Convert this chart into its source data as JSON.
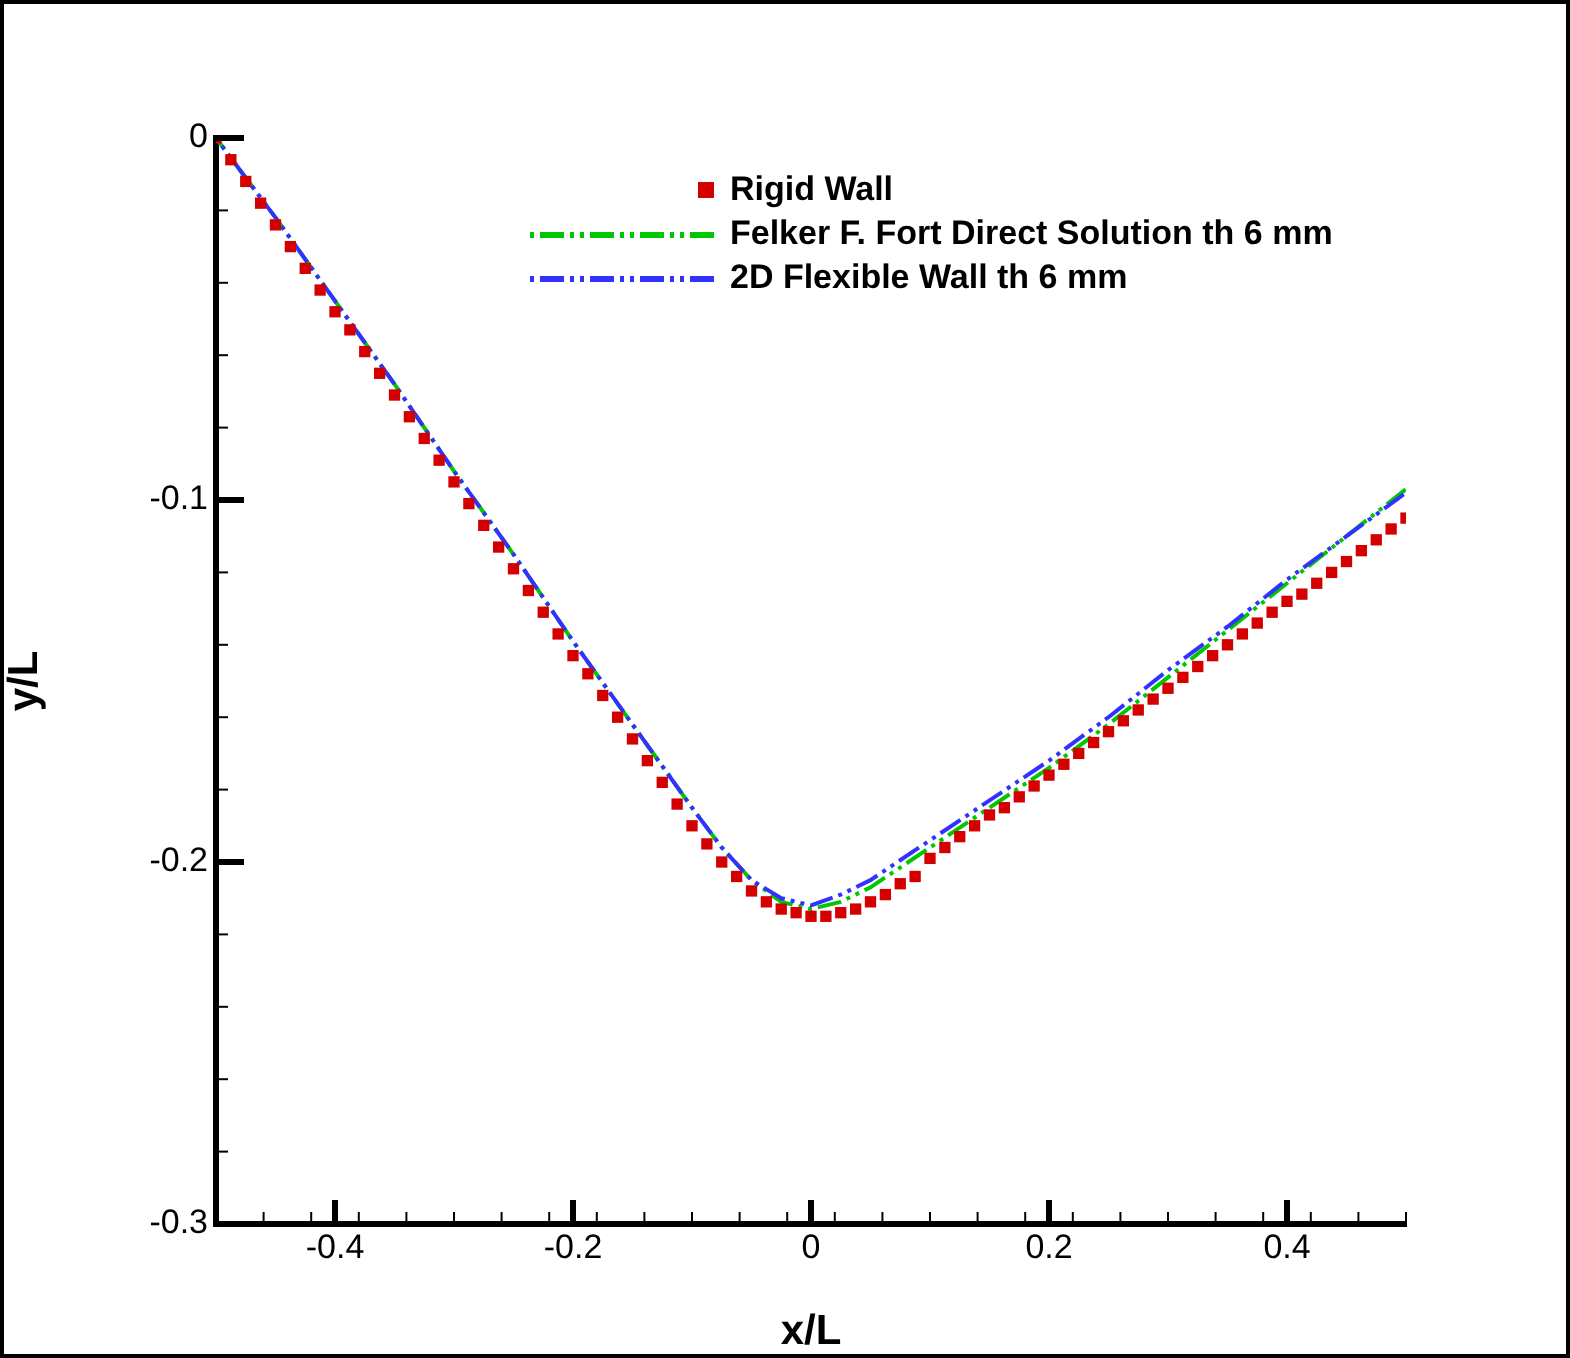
{
  "chart_data": {
    "type": "line",
    "xlabel": "x/L",
    "ylabel": "y/L",
    "xlim": [
      -0.5,
      0.5
    ],
    "ylim": [
      -0.3,
      0
    ],
    "xticks": [
      {
        "value": -0.5,
        "label": null
      },
      {
        "value": -0.46,
        "label": null
      },
      {
        "value": -0.42,
        "label": null
      },
      -0.4,
      {
        "value": -0.38,
        "label": null
      },
      {
        "value": -0.34,
        "label": null
      },
      {
        "value": -0.3,
        "label": null
      },
      {
        "value": -0.26,
        "label": null
      },
      {
        "value": -0.22,
        "label": null
      },
      -0.2,
      {
        "value": -0.18,
        "label": null
      },
      {
        "value": -0.14,
        "label": null
      },
      {
        "value": -0.1,
        "label": null
      },
      {
        "value": -0.06,
        "label": null
      },
      {
        "value": -0.02,
        "label": null
      },
      0,
      {
        "value": 0.02,
        "label": null
      },
      {
        "value": 0.06,
        "label": null
      },
      {
        "value": 0.1,
        "label": null
      },
      {
        "value": 0.14,
        "label": null
      },
      {
        "value": 0.18,
        "label": null
      },
      0.2,
      {
        "value": 0.22,
        "label": null
      },
      {
        "value": 0.26,
        "label": null
      },
      {
        "value": 0.3,
        "label": null
      },
      {
        "value": 0.34,
        "label": null
      },
      {
        "value": 0.38,
        "label": null
      },
      0.4,
      {
        "value": 0.42,
        "label": null
      },
      {
        "value": 0.46,
        "label": null
      },
      {
        "value": 0.5,
        "label": null
      }
    ],
    "yticks": [
      -0.3,
      {
        "value": -0.28,
        "label": null
      },
      {
        "value": -0.26,
        "label": null
      },
      {
        "value": -0.24,
        "label": null
      },
      {
        "value": -0.22,
        "label": null
      },
      -0.2,
      {
        "value": -0.18,
        "label": null
      },
      {
        "value": -0.16,
        "label": null
      },
      {
        "value": -0.14,
        "label": null
      },
      {
        "value": -0.12,
        "label": null
      },
      -0.1,
      {
        "value": -0.08,
        "label": null
      },
      {
        "value": -0.06,
        "label": null
      },
      {
        "value": -0.04,
        "label": null
      },
      {
        "value": -0.02,
        "label": null
      },
      0
    ],
    "grid": false,
    "legend": "top right",
    "series": [
      {
        "name": "Rigid Wall",
        "type": "scatter",
        "marker": "square",
        "color": "#d40000",
        "x": [
          -0.5,
          -0.4875,
          -0.475,
          -0.4625,
          -0.45,
          -0.4375,
          -0.425,
          -0.4125,
          -0.4,
          -0.3875,
          -0.375,
          -0.3625,
          -0.35,
          -0.3375,
          -0.325,
          -0.3125,
          -0.3,
          -0.2875,
          -0.275,
          -0.2625,
          -0.25,
          -0.2375,
          -0.225,
          -0.2125,
          -0.2,
          -0.1875,
          -0.175,
          -0.1625,
          -0.15,
          -0.1375,
          -0.125,
          -0.1125,
          -0.1,
          -0.0875,
          -0.075,
          -0.0625,
          -0.05,
          -0.0375,
          -0.025,
          -0.0125,
          0,
          0.0125,
          0.025,
          0.0375,
          0.05,
          0.0625,
          0.075,
          0.0875,
          0.1,
          0.1125,
          0.125,
          0.1375,
          0.15,
          0.1625,
          0.175,
          0.1875,
          0.2,
          0.2125,
          0.225,
          0.2375,
          0.25,
          0.2625,
          0.275,
          0.2875,
          0.3,
          0.3125,
          0.325,
          0.3375,
          0.35,
          0.3625,
          0.375,
          0.3875,
          0.4,
          0.4125,
          0.425,
          0.4375,
          0.45,
          0.4625,
          0.475,
          0.4875,
          0.5
        ],
        "values": [
          0,
          -0.006,
          -0.012,
          -0.018,
          -0.024,
          -0.03,
          -0.036,
          -0.042,
          -0.048,
          -0.053,
          -0.059,
          -0.065,
          -0.071,
          -0.077,
          -0.083,
          -0.089,
          -0.095,
          -0.101,
          -0.107,
          -0.113,
          -0.119,
          -0.125,
          -0.131,
          -0.137,
          -0.143,
          -0.148,
          -0.154,
          -0.16,
          -0.166,
          -0.172,
          -0.178,
          -0.184,
          -0.19,
          -0.195,
          -0.2,
          -0.204,
          -0.208,
          -0.211,
          -0.213,
          -0.214,
          -0.215,
          -0.215,
          -0.214,
          -0.213,
          -0.211,
          -0.209,
          -0.206,
          -0.204,
          -0.199,
          -0.196,
          -0.193,
          -0.19,
          -0.187,
          -0.185,
          -0.182,
          -0.179,
          -0.176,
          -0.173,
          -0.17,
          -0.167,
          -0.164,
          -0.161,
          -0.158,
          -0.155,
          -0.152,
          -0.149,
          -0.146,
          -0.143,
          -0.14,
          -0.137,
          -0.134,
          -0.131,
          -0.128,
          -0.126,
          -0.123,
          -0.12,
          -0.117,
          -0.114,
          -0.111,
          -0.108,
          -0.105
        ]
      },
      {
        "name": "Felker F. Fort Direct Solution th 6 mm",
        "line_style": "dashed",
        "marker": "none",
        "color": "#00c800",
        "x": [
          -0.5,
          -0.45,
          -0.4,
          -0.35,
          -0.3,
          -0.25,
          -0.2,
          -0.15,
          -0.1,
          -0.075,
          -0.05,
          -0.025,
          0,
          0.025,
          0.05,
          0.1,
          0.15,
          0.2,
          0.25,
          0.3,
          0.35,
          0.4,
          0.45,
          0.5
        ],
        "values": [
          0,
          -0.022,
          -0.045,
          -0.068,
          -0.092,
          -0.115,
          -0.139,
          -0.162,
          -0.185,
          -0.196,
          -0.205,
          -0.211,
          -0.213,
          -0.211,
          -0.207,
          -0.196,
          -0.185,
          -0.174,
          -0.162,
          -0.149,
          -0.136,
          -0.123,
          -0.11,
          -0.097
        ]
      },
      {
        "name": "2D Flexible Wall th 6 mm",
        "line_style": "dashed",
        "marker": "none",
        "color": "#3232ff",
        "x": [
          -0.5,
          -0.45,
          -0.4,
          -0.35,
          -0.3,
          -0.25,
          -0.2,
          -0.15,
          -0.1,
          -0.075,
          -0.05,
          -0.025,
          0,
          0.025,
          0.05,
          0.1,
          0.15,
          0.2,
          0.25,
          0.3,
          0.35,
          0.4,
          0.45,
          0.5
        ],
        "values": [
          0,
          -0.022,
          -0.045,
          -0.068,
          -0.092,
          -0.115,
          -0.139,
          -0.162,
          -0.185,
          -0.196,
          -0.205,
          -0.21,
          -0.212,
          -0.209,
          -0.205,
          -0.194,
          -0.183,
          -0.172,
          -0.16,
          -0.147,
          -0.135,
          -0.122,
          -0.11,
          -0.098
        ]
      }
    ]
  }
}
